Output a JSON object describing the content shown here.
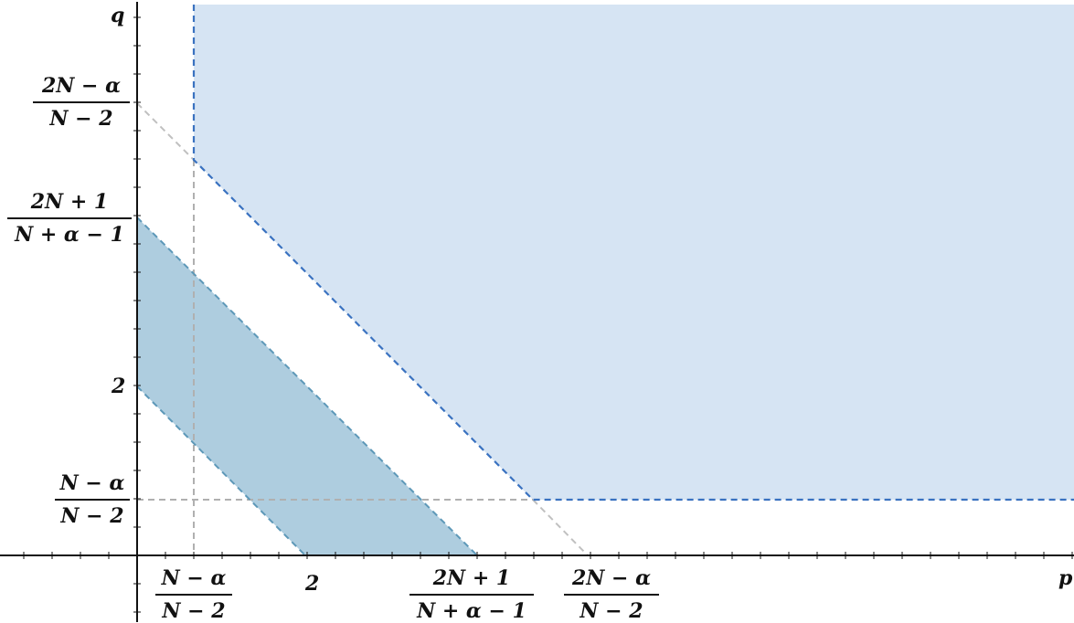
{
  "axes": {
    "x_label": "p",
    "y_label": "q"
  },
  "x_ticks": {
    "a": {
      "num": "N − α",
      "den": "N − 2"
    },
    "b": "2",
    "c": {
      "num": "2N + 1",
      "den": "N + α − 1"
    },
    "d": {
      "num": "2N − α",
      "den": "N − 2"
    }
  },
  "y_ticks": {
    "a": {
      "num": "N − α",
      "den": "N − 2"
    },
    "b": "2",
    "c": {
      "num": "2N + 1",
      "den": "N + α − 1"
    },
    "d": {
      "num": "2N − α",
      "den": "N − 2"
    }
  },
  "colors": {
    "upper_region_fill": "#d6e4f3",
    "upper_region_border": "#3a72c0",
    "band_region_fill": "#aecddf",
    "band_region_border": "#5d98b8",
    "guide_lines": "#b0b0b0",
    "axes": "#111111"
  }
}
